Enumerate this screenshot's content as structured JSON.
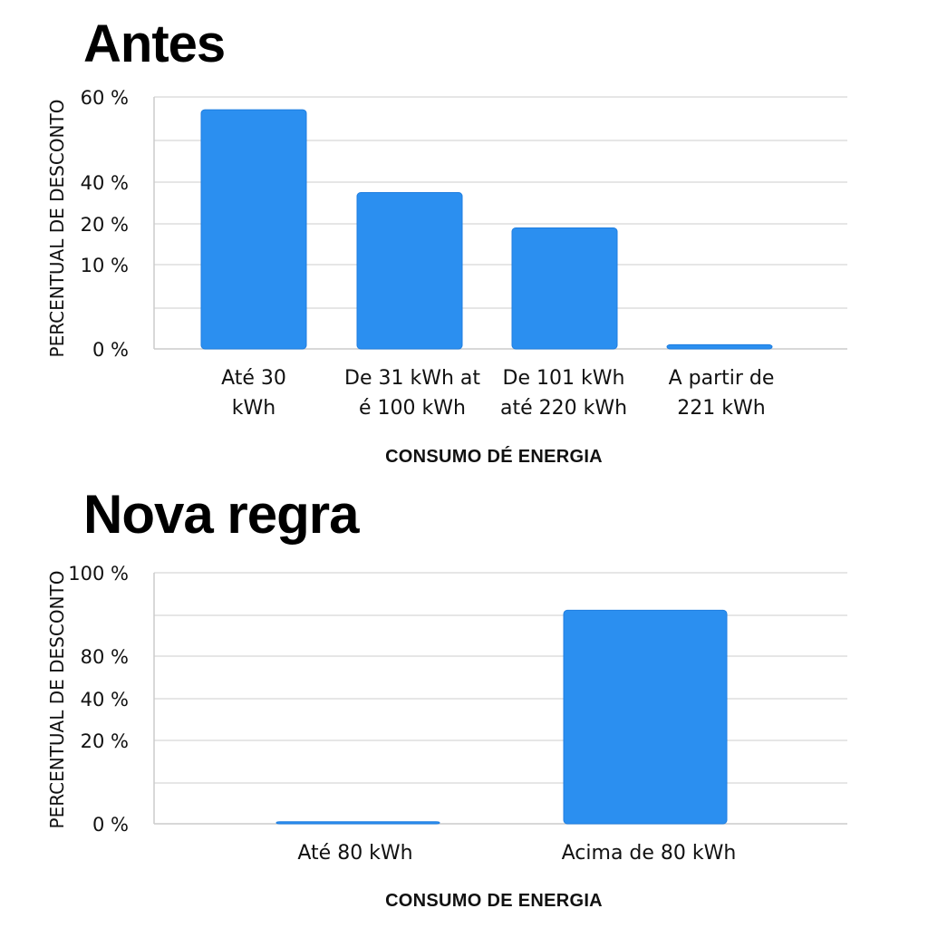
{
  "chart_data": [
    {
      "type": "bar",
      "title": "Antes",
      "xlabel": "CONSUMO DÉ ENERGIA",
      "ylabel": "PERCENTUAL DE DESCONTO",
      "categories": [
        [
          "Até 30",
          "kWh"
        ],
        [
          "De 31 kWh at",
          "é 100 kWh"
        ],
        [
          "De 101 kWh",
          "até 220 kWh"
        ],
        [
          "A partir de",
          "221 kWh"
        ]
      ],
      "yticks": [
        "60 %",
        "40 %",
        "20 %",
        "10 %",
        "0 %"
      ],
      "values": [
        57,
        35,
        19,
        0.5
      ],
      "accent": "#2b8ff0",
      "grid": true
    },
    {
      "type": "bar",
      "title": "Nova regra",
      "xlabel": "CONSUMO DE ENERGIA",
      "ylabel": "PERCENTUAL DE DESCONTO",
      "categories": [
        [
          "Até 80 kWh"
        ],
        [
          "Acima de 80 kWh"
        ]
      ],
      "yticks": [
        "100 %",
        "80 %",
        "40 %",
        "20 %",
        "0 %"
      ],
      "values": [
        0.5,
        91
      ],
      "accent": "#2b8ff0",
      "grid": true
    }
  ]
}
